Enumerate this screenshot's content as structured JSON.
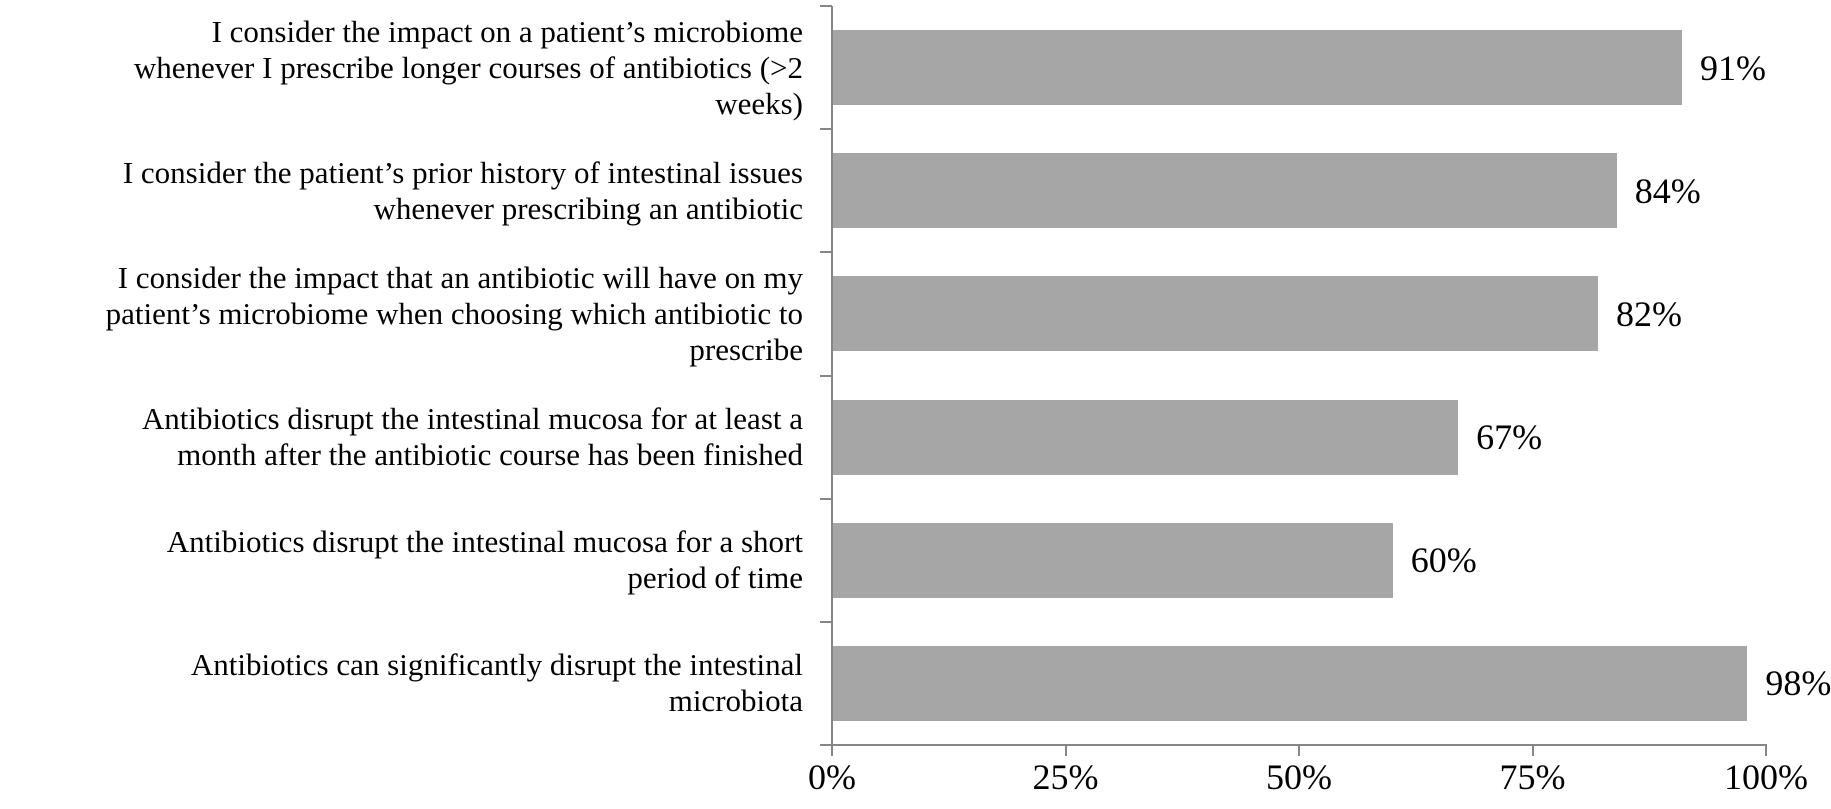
{
  "chart_data": {
    "type": "bar",
    "orientation": "horizontal",
    "title": "",
    "xlabel": "",
    "ylabel": "",
    "grid": "off",
    "legend": "none",
    "xlim": [
      0,
      100
    ],
    "x_ticks": [
      "0%",
      "25%",
      "50%",
      "75%",
      "100%"
    ],
    "categories": [
      "I consider the impact on a patient’s microbiome\nwhenever I prescribe longer courses of antibiotics (>2\nweeks)",
      "I consider the patient’s prior history of intestinal issues\nwhenever prescribing an antibiotic",
      "I consider the impact that an antibiotic will have on my\npatient’s microbiome when choosing which antibiotic to\nprescribe",
      "Antibiotics disrupt the intestinal mucosa for at least a\nmonth after the antibiotic course has been finished",
      "Antibiotics disrupt the intestinal mucosa for a short\nperiod of time",
      "Antibiotics can significantly disrupt the intestinal\nmicrobiota"
    ],
    "values": [
      91,
      84,
      82,
      67,
      60,
      98
    ],
    "value_labels": [
      "91%",
      "84%",
      "82%",
      "67%",
      "60%",
      "98%"
    ],
    "bar_color": "#a6a6a6",
    "axis_color": "#868686",
    "text_color": "#000000",
    "background_color": "#ffffff"
  }
}
